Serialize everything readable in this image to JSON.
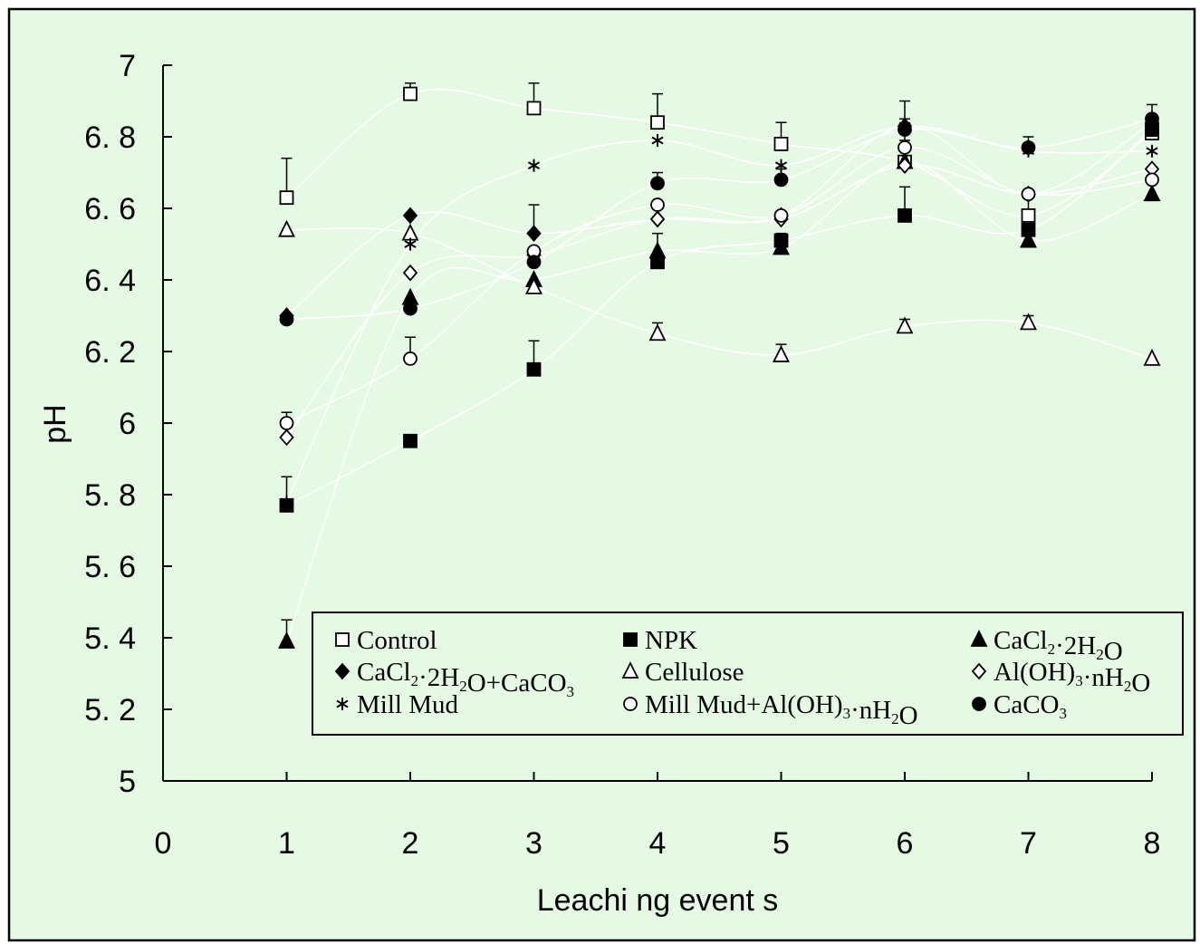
{
  "chart_data": {
    "type": "line",
    "title": "",
    "xlabel": "Leachi ng event s",
    "ylabel": "pH",
    "x_ticks": [
      "0",
      "1",
      "2",
      "3",
      "4",
      "5",
      "6",
      "7",
      "8"
    ],
    "y_ticks": [
      "5",
      "5. 2",
      "5. 4",
      "5. 6",
      "5. 8",
      "6",
      "6. 2",
      "6. 4",
      "6. 6",
      "6. 8",
      "7"
    ],
    "xlim": [
      0,
      8
    ],
    "ylim": [
      5,
      7
    ],
    "x": [
      1,
      2,
      3,
      4,
      5,
      6,
      7,
      8
    ],
    "grid": false,
    "legend_position": "bottom-right, inside plot",
    "colors": {
      "background": "#e6f9e4",
      "lines": "#ffffff",
      "markers": "#000000"
    },
    "series": [
      {
        "name": "Control",
        "marker": "square-open",
        "values": [
          6.63,
          6.92,
          6.88,
          6.84,
          6.78,
          6.73,
          6.58,
          6.81
        ],
        "err": [
          0.11,
          0.03,
          0.07,
          0.08,
          0.06,
          0.17,
          0.05,
          0.08
        ]
      },
      {
        "name": "NPK",
        "marker": "square-filled",
        "values": [
          5.77,
          5.95,
          6.15,
          6.45,
          6.51,
          6.58,
          6.54,
          6.82
        ],
        "err": [
          0.01,
          0.01,
          0.08,
          0.01,
          0.02,
          0.08,
          0.01,
          0.02
        ]
      },
      {
        "name": "CaCl₂·2H₂O",
        "marker": "triangle-filled",
        "values": [
          5.39,
          6.35,
          6.4,
          6.48,
          6.49,
          6.73,
          6.51,
          6.64
        ],
        "err": [
          0.06,
          0.01,
          0.01,
          0.05,
          0.01,
          0.01,
          0.01,
          0.01
        ]
      },
      {
        "name": "CaCl₂·2H₂O+CaCO₃",
        "marker": "diamond-filled",
        "values": [
          6.3,
          6.58,
          6.53,
          6.57,
          6.58,
          6.83,
          6.64,
          6.84
        ],
        "err": [
          0.01,
          0.01,
          0.08,
          0.01,
          0.01,
          0.02,
          0.01,
          0.02
        ]
      },
      {
        "name": "Cellulose",
        "marker": "triangle-open",
        "values": [
          6.54,
          6.53,
          6.38,
          6.25,
          6.19,
          6.27,
          6.28,
          6.18
        ],
        "err": [
          0.01,
          0.01,
          0.01,
          0.03,
          0.03,
          0.02,
          0.02,
          0.01
        ]
      },
      {
        "name": "Al(OH)₃·nH₂O",
        "marker": "diamond-open",
        "values": [
          5.96,
          6.42,
          6.47,
          6.57,
          6.57,
          6.72,
          6.64,
          6.71
        ],
        "err": [
          0.01,
          0.01,
          0.01,
          0.01,
          0.01,
          0.01,
          0.01,
          0.01
        ]
      },
      {
        "name": "Mill Mud",
        "marker": "asterisk",
        "values": [
          5.78,
          6.5,
          6.72,
          6.79,
          6.72,
          6.83,
          6.76,
          6.76
        ],
        "err": [
          0.07,
          0.02,
          0.01,
          0.01,
          0.01,
          0.02,
          0.04,
          0.01
        ]
      },
      {
        "name": "Mill Mud+Al(OH)₃·nH₂O",
        "marker": "circle-open",
        "values": [
          6.0,
          6.18,
          6.48,
          6.61,
          6.58,
          6.77,
          6.64,
          6.68
        ],
        "err": [
          0.03,
          0.06,
          0.01,
          0.01,
          0.01,
          0.02,
          0.01,
          0.01
        ]
      },
      {
        "name": "CaCO₃",
        "marker": "circle-filled",
        "values": [
          6.29,
          6.32,
          6.45,
          6.67,
          6.68,
          6.82,
          6.77,
          6.85
        ],
        "err": [
          0.01,
          0.01,
          0.01,
          0.03,
          0.03,
          0.01,
          0.01,
          0.01
        ]
      }
    ],
    "legend": {
      "columns": [
        [
          "Control",
          "CaCl₂·2H₂O+CaCO₃",
          "Mill Mud"
        ],
        [
          "NPK",
          "Cellulose",
          "Mill Mud+Al(OH)₃·nH₂O"
        ],
        [
          "CaCl₂·2H₂O",
          "Al(OH)₃·nH₂O",
          "CaCO₃"
        ]
      ]
    }
  }
}
